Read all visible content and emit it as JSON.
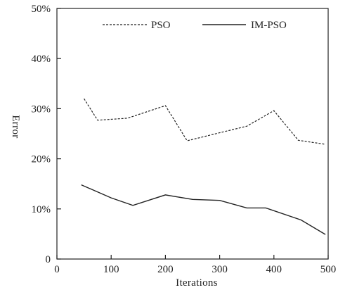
{
  "chart_data": {
    "type": "line",
    "title": "",
    "xlabel": "Iterations",
    "ylabel": "Error",
    "xlim": [
      0,
      500
    ],
    "ylim": [
      0,
      50
    ],
    "x_ticks": [
      0,
      100,
      200,
      300,
      400,
      500
    ],
    "x_tick_labels": [
      "0",
      "100",
      "200",
      "300",
      "400",
      "500"
    ],
    "y_ticks": [
      0,
      10,
      20,
      30,
      40,
      50
    ],
    "y_tick_labels": [
      "0",
      "10%",
      "20%",
      "30%",
      "40%",
      "50%"
    ],
    "grid": false,
    "legend_position": "top",
    "series": [
      {
        "name": "PSO",
        "style": "dashed",
        "color": "#222222",
        "x": [
          50,
          75,
          130,
          200,
          240,
          300,
          350,
          400,
          445,
          495
        ],
        "y": [
          32,
          27.7,
          28.1,
          30.6,
          23.6,
          25.2,
          26.5,
          29.6,
          23.7,
          22.9
        ]
      },
      {
        "name": "IM-PSO",
        "style": "solid",
        "color": "#222222",
        "x": [
          45,
          100,
          140,
          200,
          250,
          300,
          350,
          385,
          450,
          495
        ],
        "y": [
          14.8,
          12.2,
          10.7,
          12.8,
          11.9,
          11.7,
          10.2,
          10.2,
          7.8,
          4.9
        ]
      }
    ]
  }
}
